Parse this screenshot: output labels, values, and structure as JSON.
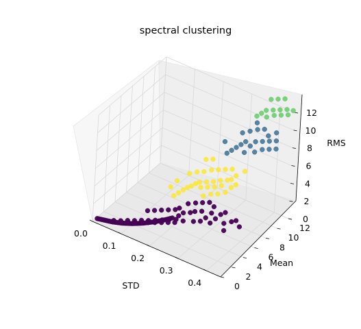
{
  "chart_data": {
    "type": "scatter",
    "projection": "3d",
    "title": "spectral clustering",
    "xlabel": "STD",
    "ylabel": "Mean",
    "zlabel": "RMS",
    "xticks": [
      "0.0",
      "0.1",
      "0.2",
      "0.3",
      "0.4"
    ],
    "yticks": [
      "0",
      "2",
      "4",
      "6",
      "8",
      "10",
      "12"
    ],
    "zticks": [
      "0",
      "2",
      "4",
      "6",
      "8",
      "10",
      "12"
    ],
    "xlim": [
      0,
      0.45
    ],
    "ylim": [
      0,
      12
    ],
    "zlim": [
      0,
      12
    ],
    "grid": true,
    "colors": {
      "cluster_0": "#440154",
      "cluster_1": "#31688e",
      "cluster_2": "#5ec962",
      "cluster_3": "#fde725"
    },
    "series": [
      {
        "cluster": 0,
        "points": [
          [
            0.01,
            0.3,
            0.3
          ],
          [
            0.015,
            0.32,
            0.32
          ],
          [
            0.02,
            0.34,
            0.34
          ],
          [
            0.025,
            0.36,
            0.36
          ],
          [
            0.03,
            0.38,
            0.38
          ],
          [
            0.035,
            0.4,
            0.4
          ],
          [
            0.04,
            0.42,
            0.42
          ],
          [
            0.045,
            0.44,
            0.44
          ],
          [
            0.05,
            0.46,
            0.46
          ],
          [
            0.055,
            0.48,
            0.48
          ],
          [
            0.06,
            0.5,
            0.5
          ],
          [
            0.065,
            0.53,
            0.53
          ],
          [
            0.07,
            0.56,
            0.56
          ],
          [
            0.075,
            0.59,
            0.59
          ],
          [
            0.08,
            0.62,
            0.62
          ],
          [
            0.085,
            0.65,
            0.65
          ],
          [
            0.09,
            0.68,
            0.68
          ],
          [
            0.095,
            0.72,
            0.72
          ],
          [
            0.1,
            0.76,
            0.76
          ],
          [
            0.105,
            0.8,
            0.8
          ],
          [
            0.11,
            0.84,
            0.84
          ],
          [
            0.115,
            0.88,
            0.88
          ],
          [
            0.12,
            0.92,
            0.92
          ],
          [
            0.125,
            0.97,
            0.97
          ],
          [
            0.13,
            1.02,
            1.02
          ],
          [
            0.135,
            1.07,
            1.07
          ],
          [
            0.14,
            1.12,
            1.12
          ],
          [
            0.145,
            1.17,
            1.17
          ],
          [
            0.15,
            1.22,
            1.22
          ],
          [
            0.155,
            1.28,
            1.28
          ],
          [
            0.16,
            1.34,
            1.34
          ],
          [
            0.165,
            1.4,
            1.4
          ],
          [
            0.17,
            1.46,
            1.46
          ],
          [
            0.175,
            1.52,
            1.52
          ],
          [
            0.18,
            1.58,
            1.58
          ],
          [
            0.185,
            1.65,
            1.65
          ],
          [
            0.19,
            1.72,
            1.72
          ],
          [
            0.195,
            1.79,
            1.79
          ],
          [
            0.2,
            1.86,
            1.86
          ],
          [
            0.205,
            1.93,
            1.93
          ],
          [
            0.21,
            2.0,
            2.0
          ],
          [
            0.215,
            2.08,
            2.08
          ],
          [
            0.22,
            2.16,
            2.16
          ],
          [
            0.225,
            2.24,
            2.24
          ],
          [
            0.23,
            2.32,
            2.32
          ],
          [
            0.06,
            0.7,
            0.55
          ],
          [
            0.08,
            0.9,
            0.7
          ],
          [
            0.1,
            1.1,
            0.9
          ],
          [
            0.12,
            1.3,
            1.05
          ],
          [
            0.14,
            1.5,
            1.25
          ],
          [
            0.16,
            1.7,
            1.4
          ],
          [
            0.18,
            1.9,
            1.6
          ],
          [
            0.2,
            2.1,
            1.8
          ],
          [
            0.22,
            2.3,
            2.0
          ],
          [
            0.24,
            2.5,
            2.2
          ],
          [
            0.07,
            0.4,
            0.7
          ],
          [
            0.09,
            0.55,
            0.85
          ],
          [
            0.11,
            0.7,
            1.0
          ],
          [
            0.13,
            0.85,
            1.2
          ],
          [
            0.15,
            1.0,
            1.4
          ],
          [
            0.17,
            1.15,
            1.6
          ],
          [
            0.19,
            1.3,
            1.8
          ],
          [
            0.21,
            1.45,
            2.0
          ],
          [
            0.23,
            1.6,
            2.2
          ],
          [
            0.25,
            1.75,
            2.4
          ],
          [
            0.15,
            2.0,
            2.2
          ],
          [
            0.17,
            2.2,
            2.4
          ],
          [
            0.19,
            2.4,
            2.6
          ],
          [
            0.21,
            2.6,
            2.8
          ],
          [
            0.23,
            2.8,
            3.0
          ],
          [
            0.25,
            2.4,
            2.8
          ],
          [
            0.27,
            2.2,
            2.6
          ],
          [
            0.26,
            2.7,
            3.1
          ],
          [
            0.24,
            3.0,
            3.2
          ],
          [
            0.28,
            2.9,
            3.3
          ],
          [
            0.3,
            2.5,
            2.8
          ],
          [
            0.32,
            2.7,
            3.0
          ],
          [
            0.29,
            3.2,
            3.4
          ],
          [
            0.31,
            3.4,
            3.6
          ],
          [
            0.33,
            3.1,
            3.3
          ],
          [
            0.35,
            2.9,
            3.1
          ],
          [
            0.36,
            3.3,
            3.5
          ],
          [
            0.34,
            3.6,
            3.7
          ],
          [
            0.37,
            3.7,
            3.9
          ],
          [
            0.39,
            3.3,
            3.4
          ],
          [
            0.4,
            2.8,
            3.0
          ],
          [
            0.41,
            3.6,
            3.7
          ],
          [
            0.38,
            4.0,
            4.1
          ],
          [
            0.42,
            3.9,
            3.8
          ],
          [
            0.44,
            3.5,
            3.6
          ],
          [
            0.26,
            3.5,
            3.7
          ],
          [
            0.28,
            3.8,
            3.9
          ],
          [
            0.3,
            4.0,
            4.1
          ],
          [
            0.32,
            4.2,
            4.3
          ],
          [
            0.34,
            4.0,
            4.2
          ]
        ]
      },
      {
        "cluster": 3,
        "points": [
          [
            0.2,
            4.0,
            3.5
          ],
          [
            0.21,
            4.3,
            3.8
          ],
          [
            0.22,
            4.6,
            4.1
          ],
          [
            0.23,
            4.8,
            4.4
          ],
          [
            0.24,
            5.0,
            4.6
          ],
          [
            0.25,
            5.2,
            4.9
          ],
          [
            0.26,
            5.4,
            5.1
          ],
          [
            0.27,
            5.1,
            4.8
          ],
          [
            0.28,
            5.6,
            5.3
          ],
          [
            0.29,
            5.3,
            5.0
          ],
          [
            0.3,
            5.8,
            5.5
          ],
          [
            0.31,
            5.5,
            5.2
          ],
          [
            0.32,
            6.0,
            5.8
          ],
          [
            0.33,
            5.7,
            5.5
          ],
          [
            0.34,
            6.2,
            6.0
          ],
          [
            0.22,
            5.6,
            5.4
          ],
          [
            0.24,
            5.9,
            5.7
          ],
          [
            0.26,
            6.1,
            5.9
          ],
          [
            0.28,
            6.4,
            6.2
          ],
          [
            0.3,
            6.6,
            6.4
          ],
          [
            0.32,
            6.8,
            6.6
          ],
          [
            0.34,
            7.0,
            6.8
          ],
          [
            0.36,
            6.7,
            6.5
          ],
          [
            0.38,
            7.2,
            7.0
          ],
          [
            0.25,
            6.9,
            6.7
          ],
          [
            0.27,
            7.1,
            6.9
          ],
          [
            0.29,
            4.6,
            4.4
          ],
          [
            0.31,
            4.9,
            4.7
          ],
          [
            0.33,
            5.1,
            4.9
          ],
          [
            0.35,
            5.4,
            5.2
          ],
          [
            0.18,
            4.4,
            4.0
          ],
          [
            0.19,
            5.0,
            4.5
          ],
          [
            0.35,
            6.4,
            6.1
          ],
          [
            0.36,
            5.9,
            5.6
          ],
          [
            0.37,
            6.2,
            5.9
          ]
        ]
      },
      {
        "cluster": 1,
        "points": [
          [
            0.3,
            8.0,
            7.5
          ],
          [
            0.31,
            8.3,
            7.8
          ],
          [
            0.32,
            8.6,
            8.1
          ],
          [
            0.33,
            8.9,
            8.4
          ],
          [
            0.34,
            9.2,
            8.7
          ],
          [
            0.35,
            8.5,
            8.0
          ],
          [
            0.36,
            9.0,
            8.6
          ],
          [
            0.37,
            9.4,
            9.0
          ],
          [
            0.38,
            8.8,
            8.3
          ],
          [
            0.39,
            9.6,
            9.2
          ],
          [
            0.4,
            9.1,
            8.7
          ],
          [
            0.41,
            9.8,
            9.4
          ],
          [
            0.42,
            9.3,
            8.9
          ],
          [
            0.43,
            10.0,
            9.6
          ],
          [
            0.44,
            9.5,
            9.1
          ],
          [
            0.32,
            9.6,
            9.2
          ],
          [
            0.34,
            9.9,
            9.5
          ],
          [
            0.36,
            10.2,
            9.8
          ],
          [
            0.38,
            10.4,
            10.0
          ],
          [
            0.4,
            10.1,
            9.7
          ],
          [
            0.28,
            8.6,
            8.2
          ],
          [
            0.35,
            10.6,
            10.2
          ],
          [
            0.42,
            10.5,
            10.1
          ]
        ]
      },
      {
        "cluster": 2,
        "points": [
          [
            0.34,
            11.0,
            10.6
          ],
          [
            0.35,
            11.3,
            10.9
          ],
          [
            0.36,
            11.6,
            11.2
          ],
          [
            0.37,
            11.2,
            10.8
          ],
          [
            0.38,
            11.8,
            11.4
          ],
          [
            0.39,
            11.5,
            11.1
          ],
          [
            0.4,
            12.0,
            11.6
          ],
          [
            0.41,
            11.7,
            11.3
          ],
          [
            0.42,
            12.2,
            11.8
          ],
          [
            0.43,
            11.9,
            11.5
          ],
          [
            0.36,
            12.4,
            12.0
          ],
          [
            0.38,
            12.6,
            12.2
          ],
          [
            0.4,
            12.8,
            12.4
          ],
          [
            0.44,
            12.3,
            11.9
          ]
        ]
      }
    ]
  }
}
